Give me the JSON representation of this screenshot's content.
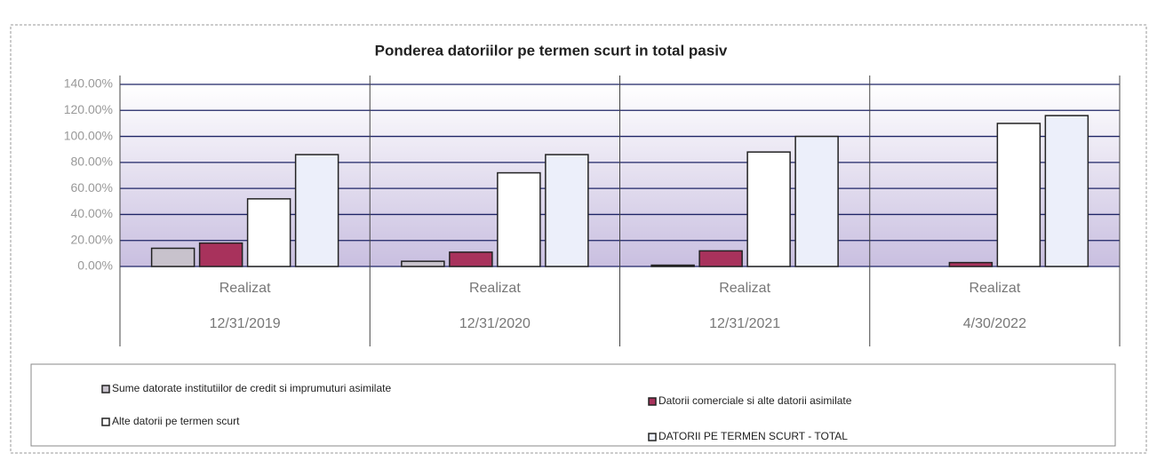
{
  "chart_data": {
    "type": "bar",
    "title": "Ponderea datoriilor pe termen scurt in total pasiv",
    "categories": [
      [
        "Realizat",
        "12/31/2019"
      ],
      [
        "Realizat",
        "12/31/2020"
      ],
      [
        "Realizat",
        "12/31/2021"
      ],
      [
        "Realizat",
        "4/30/2022"
      ]
    ],
    "series": [
      {
        "name": "Sume datorate institutiilor de credit si imprumuturi asimilate",
        "color": "#c8c2cc",
        "values": [
          14,
          4,
          1,
          0
        ]
      },
      {
        "name": "Datorii comerciale si alte datorii asimilate",
        "color": "#a8325c",
        "values": [
          18,
          11,
          12,
          3
        ]
      },
      {
        "name": "Alte datorii pe termen scurt",
        "color": "#ffffff",
        "values": [
          52,
          72,
          88,
          110
        ]
      },
      {
        "name": "DATORII PE TERMEN SCURT - TOTAL",
        "color": "#eceffa",
        "values": [
          86,
          86,
          100,
          116
        ]
      }
    ],
    "ylim": [
      0,
      140
    ],
    "yticks": [
      {
        "value": 0,
        "label": "0.00%"
      },
      {
        "value": 20,
        "label": "20.00%"
      },
      {
        "value": 40,
        "label": "40.00%"
      },
      {
        "value": 60,
        "label": "60.00%"
      },
      {
        "value": 80,
        "label": "80.00%"
      },
      {
        "value": 100,
        "label": "100.00%"
      },
      {
        "value": 120,
        "label": "120.00%"
      },
      {
        "value": 140,
        "label": "140.00%"
      }
    ],
    "grid": true
  }
}
